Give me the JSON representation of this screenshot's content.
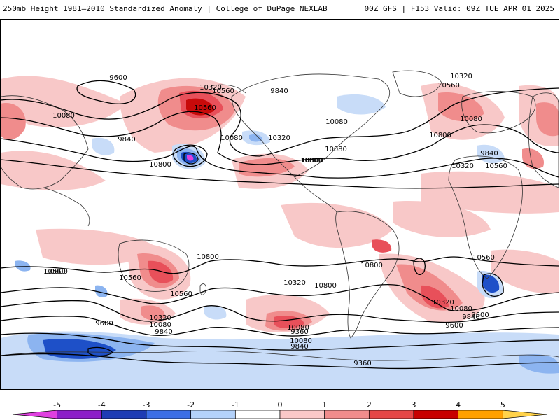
{
  "header": {
    "title": "250mb Height 1981–2010 Standardized Anomaly | College of DuPage NEXLAB",
    "run_info": "00Z GFS | F153 Valid: 09Z TUE APR 01 2025"
  },
  "map": {
    "contour_labels": [
      "9600",
      "9840",
      "10080",
      "10320",
      "10560",
      "10800",
      "10080",
      "10560",
      "10080",
      "10320",
      "10800",
      "9840",
      "10080",
      "10320",
      "10560",
      "10800",
      "9840",
      "10080",
      "10560",
      "10320",
      "10800",
      "10800",
      "10560",
      "10800",
      "10560",
      "10320",
      "10800",
      "10560",
      "10320",
      "10080",
      "9840",
      "9600",
      "9600",
      "9840",
      "10080",
      "9360",
      "9600",
      "9840",
      "10080",
      "10320",
      "10560",
      "10800",
      "9360",
      "10080"
    ],
    "colors": {
      "light_pink": "#f8c8c8",
      "pink": "#f08c8c",
      "red": "#e8505a",
      "dark_red": "#c80a0a",
      "light_blue": "#c8dcf8",
      "blue": "#8cb4f0",
      "dark_blue": "#1e50c8",
      "magenta": "#e040e0",
      "contour": "#000000",
      "coastline": "#333333"
    }
  },
  "colorbar": {
    "ticks": [
      "-5",
      "-4",
      "-3",
      "-2",
      "-1",
      "0",
      "1",
      "2",
      "3",
      "4",
      "5"
    ],
    "colors": [
      "#e040e0",
      "#8c1ec8",
      "#1e3cb4",
      "#3c6ee6",
      "#b4d2fa",
      "#ffffff",
      "#fac8c8",
      "#f08c8c",
      "#e64646",
      "#c80000",
      "#ffa000",
      "#ffd24a"
    ]
  }
}
